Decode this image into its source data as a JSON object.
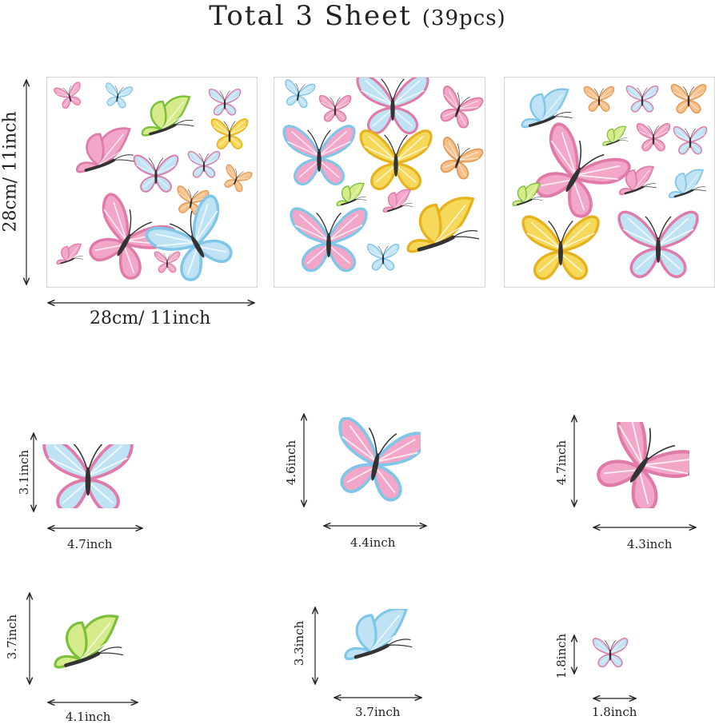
{
  "header": {
    "title": "Total 3 Sheet",
    "subtitle": "(39pcs)"
  },
  "sheet_size": {
    "width_label": "28cm/ 11inch",
    "height_label": "28cm/ 11inch"
  },
  "samples": [
    {
      "width_label": "4.7inch",
      "height_label": "3.1inch",
      "color": "pink-blue"
    },
    {
      "width_label": "4.4inch",
      "height_label": "4.6inch",
      "color": "blue-pink"
    },
    {
      "width_label": "4.3inch",
      "height_label": "4.7inch",
      "color": "pink"
    },
    {
      "width_label": "4.1inch",
      "height_label": "3.7inch",
      "color": "green"
    },
    {
      "width_label": "3.7inch",
      "height_label": "3.3inch",
      "color": "blue"
    },
    {
      "width_label": "1.8inch",
      "height_label": "1.8inch",
      "color": "pink-blue"
    }
  ],
  "colors": {
    "pink": "#f2a7c8",
    "pink_edge": "#e07aa8",
    "blue": "#bfe3f5",
    "blue_edge": "#7fc6e8",
    "yellow": "#f6d85a",
    "yellow_edge": "#e6b21e",
    "green": "#d6ec8a",
    "green_edge": "#7cbf3a",
    "peach": "#f6c08a",
    "body": "#333333"
  }
}
